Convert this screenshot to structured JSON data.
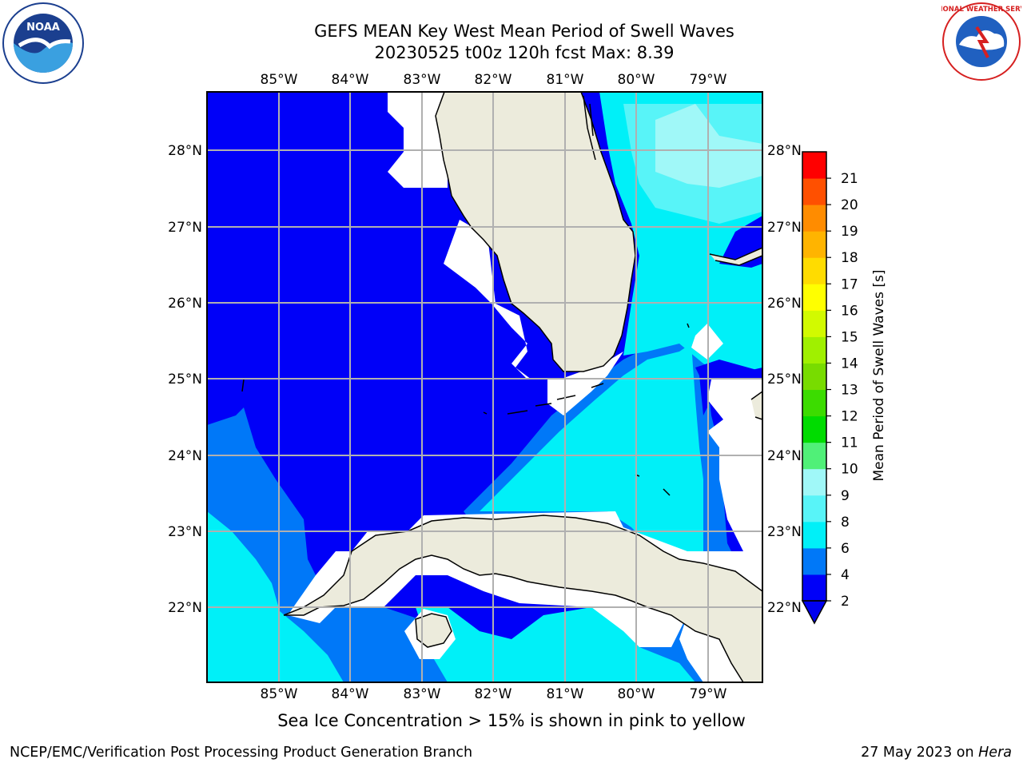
{
  "header": {
    "title_line1": "GEFS MEAN Key West Mean Period of Swell Waves",
    "title_line2": "20230525 t00z 120h fcst   Max: 8.39"
  },
  "logos": {
    "left": "NOAA",
    "right": "NATIONAL WEATHER SERVICE"
  },
  "map": {
    "longitude_labels": [
      "85°W",
      "84°W",
      "83°W",
      "82°W",
      "81°W",
      "80°W",
      "79°W"
    ],
    "latitude_labels": [
      "28°N",
      "27°N",
      "26°N",
      "25°N",
      "24°N",
      "23°N",
      "22°N"
    ],
    "colors": {
      "land": "#ecebdc",
      "missing": "#ffffff",
      "band_2_4": "#0000f8",
      "band_4_6": "#0078f8",
      "band_6_8": "#00f0f8",
      "band_8_9": "#58f4f8",
      "band_9_10": "#a0f8f8"
    }
  },
  "colorbar": {
    "label": "Mean Period of Swell Waves [s]",
    "ticks": [
      "2",
      "4",
      "6",
      "8",
      "9",
      "10",
      "11",
      "12",
      "13",
      "14",
      "15",
      "16",
      "17",
      "18",
      "19",
      "20",
      "21"
    ],
    "colors": [
      "#0000f8",
      "#0078f8",
      "#00f0f8",
      "#58f4f8",
      "#a0f8f8",
      "#50f078",
      "#00dc00",
      "#3cdc00",
      "#78dc00",
      "#a0f000",
      "#d2fa00",
      "#ffff00",
      "#ffdc00",
      "#ffb400",
      "#ff8c00",
      "#ff5000",
      "#ff0000"
    ],
    "under_color": "#0000f0"
  },
  "footer": {
    "note": "Sea Ice Concentration > 15% is shown in pink to yellow",
    "credit_left": "NCEP/EMC/Verification Post Processing Product Generation Branch",
    "credit_date": "27 May 2023 on ",
    "credit_host": "Hera"
  }
}
